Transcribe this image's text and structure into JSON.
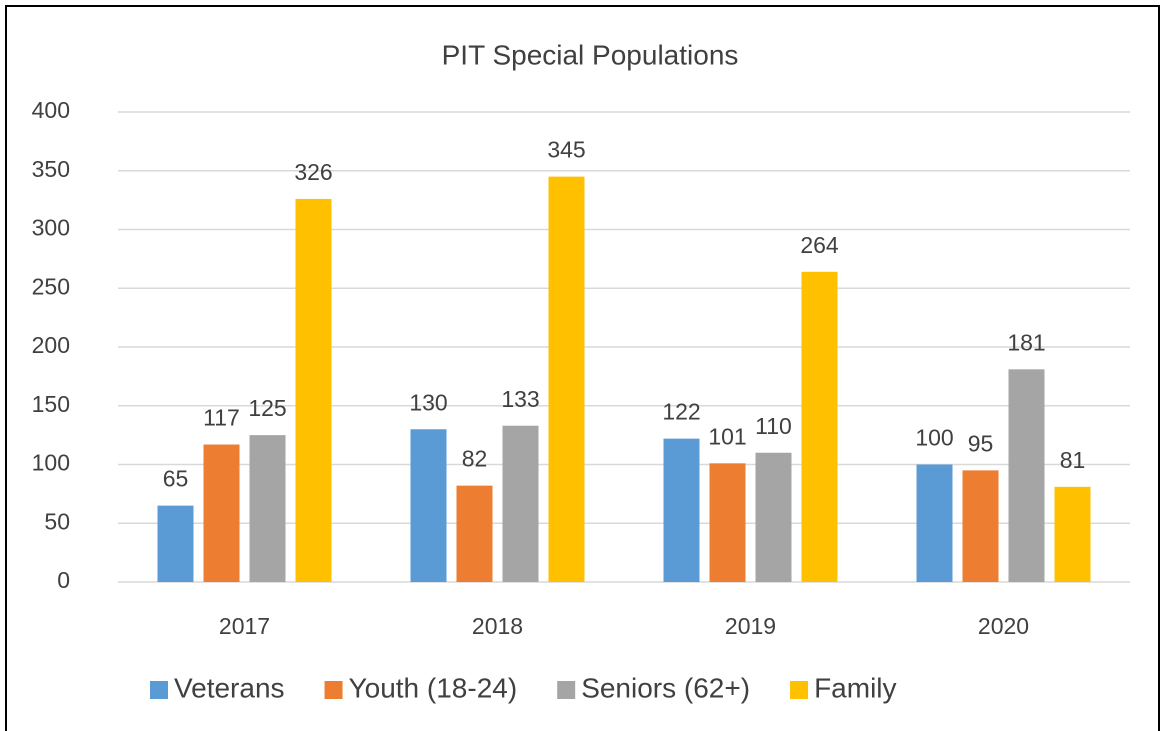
{
  "chart_data": {
    "type": "bar",
    "title": "PIT Special Populations",
    "categories": [
      "2017",
      "2018",
      "2019",
      "2020"
    ],
    "series": [
      {
        "name": "Veterans",
        "color": "#5b9bd5",
        "values": [
          65,
          130,
          122,
          100
        ]
      },
      {
        "name": "Youth (18-24)",
        "color": "#ed7d31",
        "values": [
          117,
          82,
          101,
          95
        ]
      },
      {
        "name": "Seniors (62+)",
        "color": "#a5a5a5",
        "values": [
          125,
          133,
          110,
          181
        ]
      },
      {
        "name": "Family",
        "color": "#ffc000",
        "values": [
          326,
          345,
          264,
          81
        ]
      }
    ],
    "ylim": [
      0,
      400
    ],
    "yticks": [
      0,
      50,
      100,
      150,
      200,
      250,
      300,
      350,
      400
    ],
    "grid": true,
    "legend": "bottom"
  }
}
